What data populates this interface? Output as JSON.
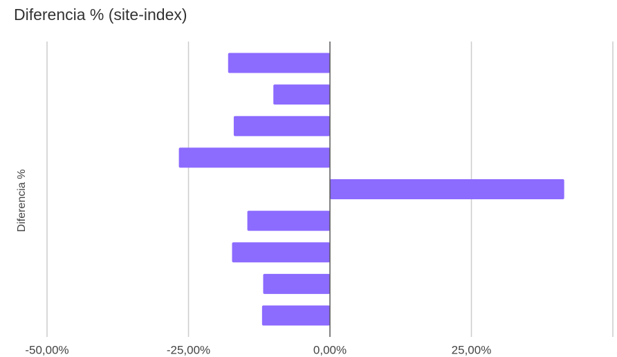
{
  "chart_data": {
    "type": "bar",
    "orientation": "horizontal",
    "title": "Diferencia % (site-index)",
    "y_label": "Diferencia %",
    "categories": [
      null,
      null,
      null,
      null,
      null,
      null,
      null,
      null,
      null
    ],
    "values": [
      -18.0,
      -10.0,
      -17.0,
      -26.7,
      41.4,
      -14.6,
      -17.3,
      -11.8,
      -12.0
    ],
    "color": "#8c6bff",
    "xlim": [
      -50,
      50
    ],
    "xticks": [
      {
        "value": -50,
        "label": "-50,00%"
      },
      {
        "value": -25,
        "label": "-25,00%"
      },
      {
        "value": 0,
        "label": "0,00%"
      },
      {
        "value": 25,
        "label": "25,00%"
      }
    ],
    "grid": true
  }
}
